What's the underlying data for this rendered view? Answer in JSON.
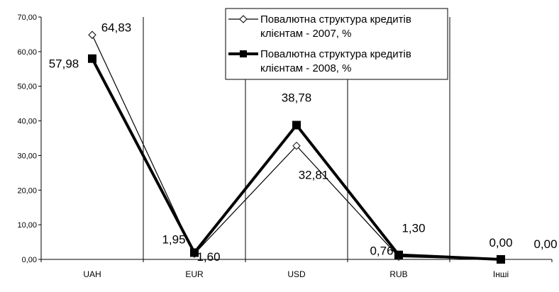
{
  "chart_data": {
    "type": "line",
    "categories": [
      "UAH",
      "EUR",
      "USD",
      "RUB",
      "Інші"
    ],
    "ylim": [
      0,
      70
    ],
    "yticks": [
      "0,00",
      "10,00",
      "20,00",
      "30,00",
      "40,00",
      "50,00",
      "60,00",
      "70,00"
    ],
    "grid": "vertical",
    "legend_position": "top-right",
    "series": [
      {
        "name_line1": "Повалютна структура кредитів",
        "name_line2": "клієнтам - 2007, %",
        "values": [
          64.83,
          1.6,
          32.81,
          0.76,
          0.0
        ],
        "labels": [
          "64,83",
          "1,60",
          "32,81",
          "0,76",
          "0,00"
        ],
        "color": "#000000",
        "marker": "diamond-open"
      },
      {
        "name_line1": "Повалютна структура кредитів",
        "name_line2": "клієнтам - 2008, %",
        "values": [
          57.98,
          1.95,
          38.78,
          1.3,
          0.0
        ],
        "labels": [
          "57,98",
          "1,95",
          "38,78",
          "1,30",
          "0,00"
        ],
        "color": "#000000",
        "marker": "square-filled"
      }
    ]
  }
}
